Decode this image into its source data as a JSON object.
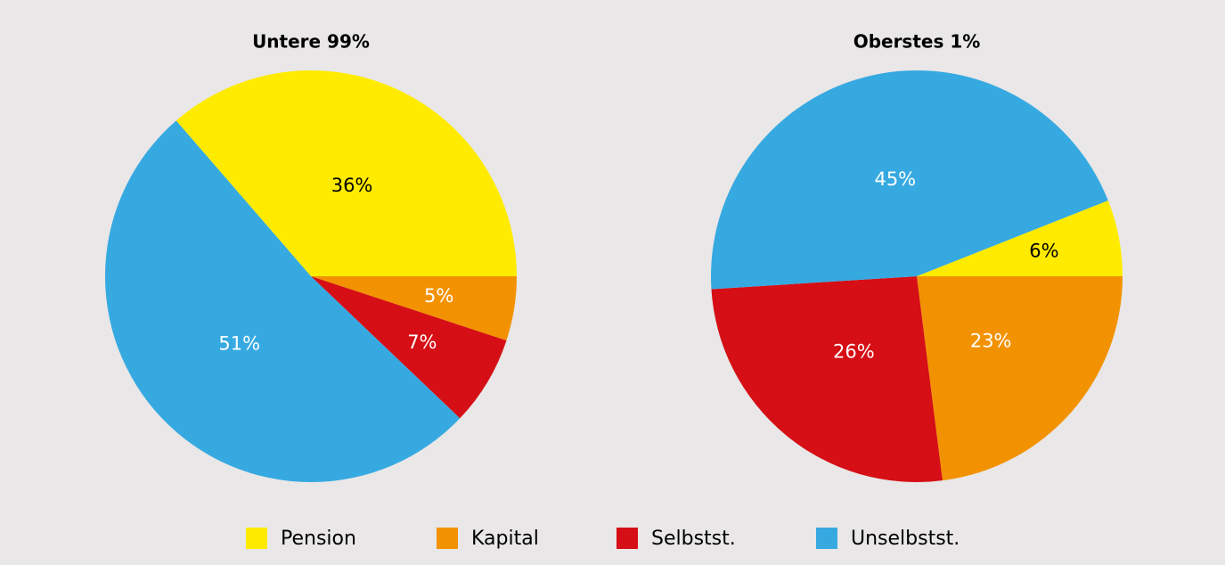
{
  "chart_data": [
    {
      "type": "pie",
      "title": "Untere 99%",
      "categories": [
        "Pension",
        "Kapital",
        "Selbstst.",
        "Unselbstst."
      ],
      "values": [
        36,
        5,
        7,
        51
      ],
      "value_labels": [
        "36%",
        "5%",
        "7%",
        "51%"
      ],
      "colors": [
        "#ffeb00",
        "#f39200",
        "#d50f15",
        "#36a9e1"
      ]
    },
    {
      "type": "pie",
      "title": "Oberstes 1%",
      "categories": [
        "Pension",
        "Kapital",
        "Selbstst.",
        "Unselbstst."
      ],
      "values": [
        6,
        23,
        26,
        45
      ],
      "value_labels": [
        "6%",
        "23%",
        "26%",
        "45%"
      ],
      "colors": [
        "#ffeb00",
        "#f39200",
        "#d50f15",
        "#36a9e1"
      ]
    }
  ]
}
